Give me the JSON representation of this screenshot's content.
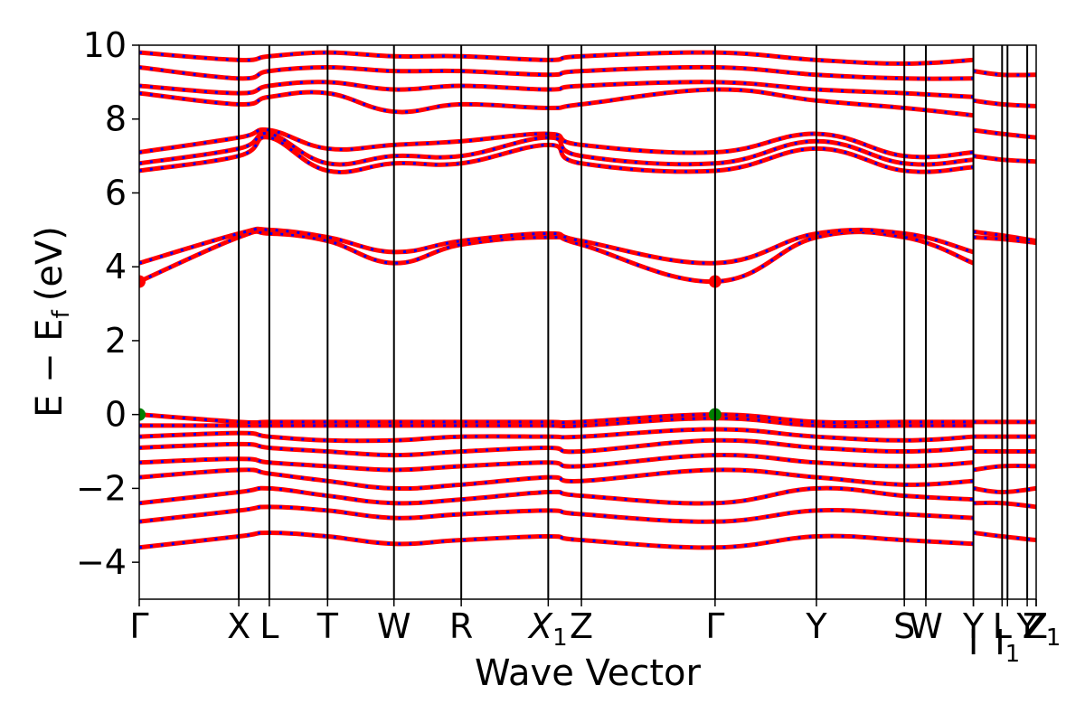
{
  "chart_data": {
    "type": "line",
    "xlabel": "Wave Vector",
    "ylabel": {
      "main": "E − E",
      "subscript": "f",
      "unit": "(eV)"
    },
    "ylim": [
      -5,
      10
    ],
    "yticks": [
      -4,
      -2,
      0,
      2,
      4,
      6,
      8,
      10
    ],
    "ytick_labels": [
      "−4",
      "−2",
      "0",
      "2",
      "4",
      "6",
      "8",
      "10"
    ],
    "xlim": [
      0,
      1
    ],
    "kpoints": [
      {
        "label": "Γ",
        "x": 0.0
      },
      {
        "label": "X",
        "x": 0.111
      },
      {
        "label": "L",
        "x": 0.145
      },
      {
        "label": "T",
        "x": 0.21
      },
      {
        "label": "W",
        "x": 0.284
      },
      {
        "label": "R",
        "x": 0.359
      },
      {
        "label": "X",
        "sub": "1",
        "italic": true,
        "x": 0.456
      },
      {
        "label": "Z",
        "x": 0.493
      },
      {
        "label": "Γ",
        "x": 0.642
      },
      {
        "label": "Y",
        "x": 0.755
      },
      {
        "label": "S",
        "x": 0.853
      },
      {
        "label": "W",
        "x": 0.877
      },
      {
        "label": "Y",
        "x": 0.93
      },
      {
        "label": "I",
        "x": 0.93
      },
      {
        "label": "L",
        "x": 0.962
      },
      {
        "label": "I",
        "sub": "1",
        "x": 0.968
      },
      {
        "label": "Y",
        "x": 0.99
      },
      {
        "label": "Z",
        "x": 1.0
      },
      {
        "label": "Z",
        "sub": "1",
        "x": 1.0
      }
    ],
    "grid": false,
    "legend": "none",
    "series": [
      {
        "color": "#ff0000",
        "style": "solid",
        "bands": [
          {
            "x": [
              0,
              0.111,
              0.145,
              0.21,
              0.284,
              0.359,
              0.456,
              0.493,
              0.642,
              0.755,
              0.853,
              0.93
            ],
            "y": [
              -3.6,
              -3.3,
              -3.2,
              -3.3,
              -3.5,
              -3.4,
              -3.3,
              -3.4,
              -3.6,
              -3.3,
              -3.4,
              -3.5
            ]
          },
          {
            "x": [
              0,
              0.111,
              0.145,
              0.21,
              0.284,
              0.359,
              0.456,
              0.493,
              0.642,
              0.755,
              0.853,
              0.93
            ],
            "y": [
              -2.9,
              -2.6,
              -2.5,
              -2.6,
              -2.8,
              -2.7,
              -2.6,
              -2.7,
              -2.9,
              -2.6,
              -2.7,
              -2.8
            ]
          },
          {
            "x": [
              0,
              0.111,
              0.145,
              0.21,
              0.284,
              0.359,
              0.456,
              0.493,
              0.642,
              0.755,
              0.853,
              0.93
            ],
            "y": [
              -2.4,
              -2.1,
              -2.0,
              -2.2,
              -2.4,
              -2.3,
              -2.1,
              -2.2,
              -2.4,
              -2.0,
              -2.2,
              -2.3
            ]
          },
          {
            "x": [
              0,
              0.111,
              0.145,
              0.21,
              0.284,
              0.359,
              0.456,
              0.493,
              0.642,
              0.755,
              0.853,
              0.93
            ],
            "y": [
              -1.7,
              -1.5,
              -1.6,
              -1.8,
              -2.0,
              -1.9,
              -1.7,
              -1.8,
              -1.5,
              -1.7,
              -1.9,
              -1.8
            ]
          },
          {
            "x": [
              0,
              0.111,
              0.145,
              0.21,
              0.284,
              0.359,
              0.456,
              0.493,
              0.642,
              0.755,
              0.853,
              0.93
            ],
            "y": [
              -1.3,
              -1.2,
              -1.3,
              -1.4,
              -1.5,
              -1.4,
              -1.3,
              -1.4,
              -1.1,
              -1.3,
              -1.4,
              -1.3
            ]
          },
          {
            "x": [
              0,
              0.111,
              0.145,
              0.21,
              0.284,
              0.359,
              0.456,
              0.493,
              0.642,
              0.755,
              0.853,
              0.93
            ],
            "y": [
              -0.9,
              -0.8,
              -0.9,
              -1.0,
              -1.1,
              -1.0,
              -0.9,
              -1.0,
              -0.7,
              -0.9,
              -1.0,
              -0.9
            ]
          },
          {
            "x": [
              0,
              0.111,
              0.145,
              0.21,
              0.284,
              0.359,
              0.456,
              0.493,
              0.642,
              0.755,
              0.853,
              0.93
            ],
            "y": [
              -0.6,
              -0.5,
              -0.6,
              -0.7,
              -0.7,
              -0.6,
              -0.6,
              -0.6,
              -0.4,
              -0.6,
              -0.7,
              -0.6
            ]
          },
          {
            "x": [
              0,
              0.111,
              0.145,
              0.21,
              0.284,
              0.359,
              0.456,
              0.493,
              0.642,
              0.755,
              0.853,
              0.93
            ],
            "y": [
              -0.3,
              -0.3,
              -0.3,
              -0.3,
              -0.3,
              -0.3,
              -0.3,
              -0.3,
              -0.1,
              -0.3,
              -0.3,
              -0.3
            ]
          },
          {
            "x": [
              0,
              0.111,
              0.145,
              0.21,
              0.284,
              0.359,
              0.456,
              0.493,
              0.642,
              0.755,
              0.853,
              0.93
            ],
            "y": [
              0.0,
              -0.2,
              -0.2,
              -0.2,
              -0.2,
              -0.2,
              -0.2,
              -0.2,
              0.0,
              -0.2,
              -0.2,
              -0.2
            ]
          },
          {
            "x": [
              0,
              0.111,
              0.145,
              0.21,
              0.284,
              0.359,
              0.456,
              0.493,
              0.642,
              0.755,
              0.853,
              0.93
            ],
            "y": [
              3.6,
              4.8,
              4.9,
              4.7,
              4.1,
              4.6,
              4.8,
              4.6,
              3.6,
              4.8,
              4.8,
              4.1
            ]
          },
          {
            "x": [
              0,
              0.111,
              0.145,
              0.21,
              0.284,
              0.359,
              0.456,
              0.493,
              0.642,
              0.755,
              0.853,
              0.93
            ],
            "y": [
              4.1,
              4.9,
              5.0,
              4.8,
              4.4,
              4.7,
              4.9,
              4.7,
              4.1,
              4.9,
              4.9,
              4.4
            ]
          },
          {
            "x": [
              0.93,
              0.962,
              1.0
            ],
            "y": [
              4.8,
              4.75,
              4.65
            ]
          },
          {
            "x": [
              0.93,
              0.962,
              1.0
            ],
            "y": [
              4.95,
              4.85,
              4.7
            ]
          },
          {
            "x": [
              0,
              0.111,
              0.145,
              0.21,
              0.284,
              0.359,
              0.456,
              0.493,
              0.642,
              0.755,
              0.853,
              0.93
            ],
            "y": [
              6.6,
              7.0,
              7.5,
              6.6,
              6.8,
              6.8,
              7.3,
              6.8,
              6.6,
              7.2,
              6.6,
              6.7
            ]
          },
          {
            "x": [
              0,
              0.111,
              0.145,
              0.21,
              0.284,
              0.359,
              0.456,
              0.493,
              0.642,
              0.755,
              0.853,
              0.93
            ],
            "y": [
              6.8,
              7.2,
              7.6,
              6.8,
              7.0,
              7.0,
              7.5,
              7.0,
              6.8,
              7.4,
              6.8,
              6.9
            ]
          },
          {
            "x": [
              0,
              0.111,
              0.145,
              0.21,
              0.284,
              0.359,
              0.456,
              0.493,
              0.642,
              0.755,
              0.853,
              0.93
            ],
            "y": [
              7.1,
              7.5,
              7.7,
              7.2,
              7.3,
              7.4,
              7.6,
              7.3,
              7.1,
              7.6,
              7.0,
              7.1
            ]
          },
          {
            "x": [
              0,
              0.111,
              0.145,
              0.21,
              0.284,
              0.359,
              0.456,
              0.493,
              0.642,
              0.755,
              0.853,
              0.93
            ],
            "y": [
              8.7,
              8.4,
              8.6,
              8.7,
              8.2,
              8.4,
              8.3,
              8.4,
              8.8,
              8.5,
              8.3,
              8.1
            ]
          },
          {
            "x": [
              0,
              0.111,
              0.145,
              0.21,
              0.284,
              0.359,
              0.456,
              0.493,
              0.642,
              0.755,
              0.853,
              0.93
            ],
            "y": [
              8.9,
              8.7,
              8.9,
              9.0,
              8.8,
              8.9,
              8.8,
              8.9,
              9.0,
              8.8,
              8.7,
              8.6
            ]
          },
          {
            "x": [
              0,
              0.111,
              0.145,
              0.21,
              0.284,
              0.359,
              0.456,
              0.493,
              0.642,
              0.755,
              0.853,
              0.93
            ],
            "y": [
              9.4,
              9.1,
              9.3,
              9.4,
              9.3,
              9.3,
              9.2,
              9.3,
              9.4,
              9.2,
              9.1,
              9.1
            ]
          },
          {
            "x": [
              0,
              0.111,
              0.145,
              0.21,
              0.284,
              0.359,
              0.456,
              0.493,
              0.642,
              0.755,
              0.853,
              0.93
            ],
            "y": [
              9.8,
              9.6,
              9.7,
              9.8,
              9.7,
              9.7,
              9.6,
              9.7,
              9.8,
              9.6,
              9.5,
              9.6
            ]
          },
          {
            "x": [
              0.93,
              0.962,
              1.0
            ],
            "y": [
              7.7,
              7.6,
              7.5
            ]
          },
          {
            "x": [
              0.93,
              0.962,
              1.0
            ],
            "y": [
              7.0,
              6.9,
              6.85
            ]
          },
          {
            "x": [
              0.93,
              0.962,
              1.0
            ],
            "y": [
              8.5,
              8.4,
              8.35
            ]
          },
          {
            "x": [
              0.93,
              0.962,
              1.0
            ],
            "y": [
              9.3,
              9.2,
              9.2
            ]
          },
          {
            "x": [
              0.93,
              0.962,
              1.0
            ],
            "y": [
              -0.2,
              -0.2,
              -0.2
            ]
          },
          {
            "x": [
              0.93,
              0.962,
              1.0
            ],
            "y": [
              -0.6,
              -0.6,
              -0.6
            ]
          },
          {
            "x": [
              0.93,
              0.962,
              1.0
            ],
            "y": [
              -1.0,
              -1.0,
              -1.0
            ]
          },
          {
            "x": [
              0.93,
              0.962,
              1.0
            ],
            "y": [
              -1.5,
              -1.4,
              -1.4
            ]
          },
          {
            "x": [
              0.93,
              0.962,
              1.0
            ],
            "y": [
              -2.0,
              -2.1,
              -2.0
            ]
          },
          {
            "x": [
              0.93,
              0.962,
              1.0
            ],
            "y": [
              -2.4,
              -2.4,
              -2.5
            ]
          },
          {
            "x": [
              0.93,
              0.962,
              1.0
            ],
            "y": [
              -3.2,
              -3.3,
              -3.4
            ]
          }
        ]
      },
      {
        "color": "#0000ff",
        "style": "dashed",
        "note_same_bands_as": 0
      }
    ],
    "markers": [
      {
        "kind": "cbm",
        "color": "#ff0000",
        "points": [
          {
            "x": 0.0,
            "y": 3.6
          },
          {
            "x": 0.642,
            "y": 3.6
          }
        ]
      },
      {
        "kind": "vbm",
        "color": "#008000",
        "points": [
          {
            "x": 0.0,
            "y": 0.0
          },
          {
            "x": 0.642,
            "y": 0.0
          }
        ]
      }
    ]
  }
}
